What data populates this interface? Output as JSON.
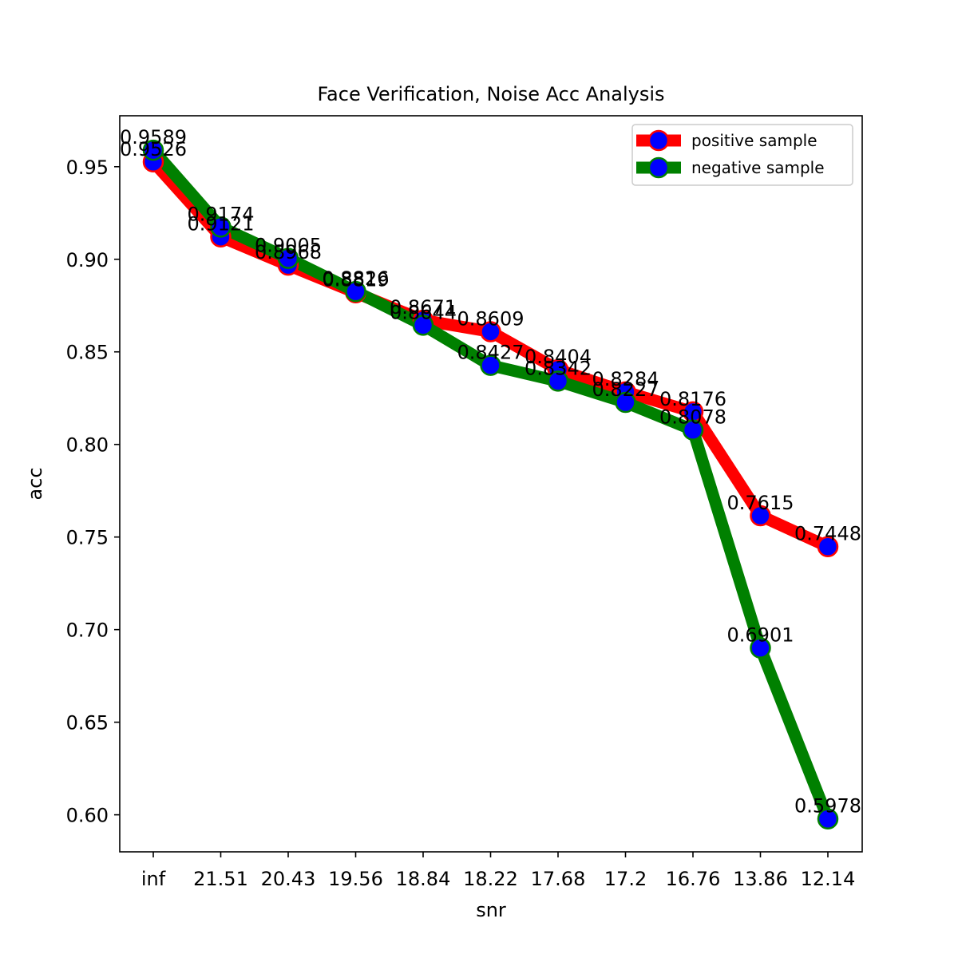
{
  "chart_data": {
    "type": "line",
    "title": "Face Verification, Noise Acc Analysis",
    "xlabel": "snr",
    "ylabel": "acc",
    "categories": [
      "inf",
      "21.51",
      "20.43",
      "19.56",
      "18.84",
      "18.22",
      "17.68",
      "17.2",
      "16.76",
      "13.86",
      "12.14"
    ],
    "ylim": [
      0.58,
      0.9775
    ],
    "yticks": [
      "0.60",
      "0.65",
      "0.70",
      "0.75",
      "0.80",
      "0.85",
      "0.90",
      "0.95"
    ],
    "grid": false,
    "legend_position": "top-right",
    "marker_color": "#0000ff",
    "series": [
      {
        "name": "positive sample",
        "color": "#ff0000",
        "values": [
          0.9526,
          0.9121,
          0.8968,
          0.8819,
          0.8671,
          0.8609,
          0.8404,
          0.8284,
          0.8176,
          0.7615,
          0.7448
        ],
        "labels": [
          "0.9526",
          "0.9121",
          "0.8968",
          "0.8819",
          "0.8671",
          "0.8609",
          "0.8404",
          "0.8284",
          "0.8176",
          "0.7615",
          "0.7448"
        ]
      },
      {
        "name": "negative sample",
        "color": "#008000",
        "values": [
          0.9589,
          0.9174,
          0.9005,
          0.8826,
          0.8644,
          0.8427,
          0.8342,
          0.8227,
          0.8078,
          0.6901,
          0.5978
        ],
        "labels": [
          "0.9589",
          "0.9174",
          "0.9005",
          "0.8826",
          "0.8644",
          "0.8427",
          "0.8342",
          "0.8227",
          "0.8078",
          "0.6901",
          "0.5978"
        ]
      }
    ]
  }
}
